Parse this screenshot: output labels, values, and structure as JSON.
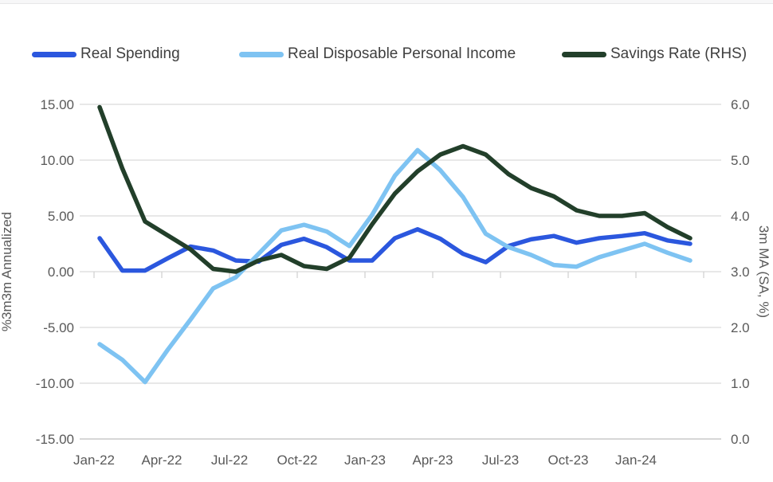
{
  "legend": {
    "items": [
      {
        "label": "Real Spending",
        "color": "#2b57de"
      },
      {
        "label": "Real Disposable Personal Income",
        "color": "#7ec3f2"
      },
      {
        "label": "Savings Rate (RHS)",
        "color": "#223f2a"
      }
    ]
  },
  "chart_data": {
    "type": "line",
    "x": [
      "Jan-22",
      "Feb-22",
      "Mar-22",
      "Apr-22",
      "May-22",
      "Jun-22",
      "Jul-22",
      "Aug-22",
      "Sep-22",
      "Oct-22",
      "Nov-22",
      "Dec-22",
      "Jan-23",
      "Feb-23",
      "Mar-23",
      "Apr-23",
      "May-23",
      "Jun-23",
      "Jul-23",
      "Aug-23",
      "Sep-23",
      "Oct-23",
      "Nov-23",
      "Dec-23",
      "Jan-24",
      "Feb-24",
      "Mar-24"
    ],
    "series": [
      {
        "name": "Real Spending",
        "axis": "left",
        "color": "#2b57de",
        "values": [
          3.0,
          0.1,
          0.1,
          1.2,
          2.25,
          1.9,
          1.0,
          0.9,
          2.4,
          2.95,
          2.2,
          1.0,
          1.0,
          3.0,
          3.8,
          2.95,
          1.6,
          0.85,
          2.3,
          2.9,
          3.2,
          2.6,
          3.0,
          3.2,
          3.45,
          2.8,
          2.5
        ]
      },
      {
        "name": "Real Disposable Personal Income",
        "axis": "left",
        "color": "#7ec3f2",
        "values": [
          -6.5,
          -7.9,
          -9.9,
          -7.0,
          -4.3,
          -1.5,
          -0.5,
          1.6,
          3.7,
          4.2,
          3.6,
          2.3,
          5.1,
          8.6,
          10.9,
          9.1,
          6.7,
          3.4,
          2.2,
          1.5,
          0.6,
          0.45,
          1.3,
          1.9,
          2.5,
          1.7,
          1.0
        ]
      },
      {
        "name": "Savings Rate (RHS)",
        "axis": "right",
        "color": "#223f2a",
        "values": [
          5.95,
          4.85,
          3.9,
          3.65,
          3.4,
          3.05,
          3.0,
          3.2,
          3.3,
          3.1,
          3.05,
          3.25,
          3.85,
          4.4,
          4.8,
          5.1,
          5.25,
          5.1,
          4.75,
          4.5,
          4.35,
          4.1,
          4.0,
          4.0,
          4.05,
          3.8,
          3.6
        ]
      }
    ],
    "left_axis": {
      "title": "%3m3m Annualized",
      "min": -15,
      "max": 15,
      "tick_labels": [
        "15.00",
        "10.00",
        "5.00",
        "0.00",
        "-5.00",
        "-10.00",
        "-15.00"
      ]
    },
    "right_axis": {
      "title": "3m MA (SA, %)",
      "min": 0,
      "max": 6,
      "tick_labels": [
        "6.0",
        "5.0",
        "4.0",
        "3.0",
        "2.0",
        "1.0",
        "0.0"
      ]
    },
    "x_tick_labels": [
      "Jan-22",
      "Apr-22",
      "Jul-22",
      "Oct-22",
      "Jan-23",
      "Apr-23",
      "Jul-23",
      "Oct-23",
      "Jan-24"
    ],
    "grid": true,
    "legend_position": "top"
  },
  "colors": {
    "gridline": "#d9d9d9",
    "axis_line": "#c9c9c9",
    "tick_mark": "#cfcfcf"
  }
}
